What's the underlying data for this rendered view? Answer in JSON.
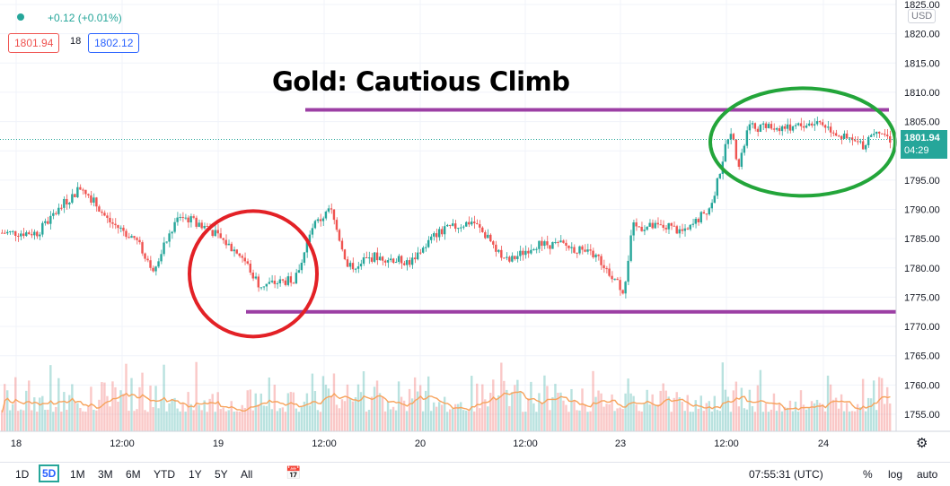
{
  "header": {
    "change_text": "+0.12 (+0.01%)",
    "bid": "1801.94",
    "spread": "18",
    "ask": "1802.12",
    "currency": "USD"
  },
  "annotation_title": "Gold: Cautious Climb",
  "price_tag": {
    "price": "1801.94",
    "countdown": "04:29"
  },
  "toolbar": {
    "timeframes": [
      "1D",
      "5D",
      "1M",
      "3M",
      "6M",
      "YTD",
      "1Y",
      "5Y",
      "All"
    ],
    "active_timeframe": "5D",
    "time": "07:55:31 (UTC)",
    "percent": "%",
    "log": "log",
    "auto": "auto"
  },
  "icons": [
    "settings-gear-icon",
    "date-range-icon"
  ],
  "colors": {
    "up": "#26a69a",
    "down": "#ef5350",
    "purple_line": "#9c3fa4",
    "circle_red": "#e32126",
    "circle_green": "#23a53a"
  },
  "chart_data": {
    "type": "candlestick",
    "ylim": [
      1750,
      1825
    ],
    "y_ticks": [
      1755,
      1760,
      1765,
      1770,
      1775,
      1780,
      1785,
      1790,
      1795,
      1800,
      1805,
      1810,
      1815,
      1820,
      1825
    ],
    "x_tick_labels": [
      "18",
      "12:00",
      "19",
      "12:00",
      "20",
      "12:00",
      "23",
      "12:00",
      "24"
    ],
    "last_price": 1801.94,
    "price_path": [
      {
        "t": 0,
        "p": 1786
      },
      {
        "t": 0.04,
        "p": 1786
      },
      {
        "t": 0.07,
        "p": 1791
      },
      {
        "t": 0.09,
        "p": 1794
      },
      {
        "t": 0.12,
        "p": 1788
      },
      {
        "t": 0.15,
        "p": 1785
      },
      {
        "t": 0.17,
        "p": 1780
      },
      {
        "t": 0.2,
        "p": 1789
      },
      {
        "t": 0.23,
        "p": 1787
      },
      {
        "t": 0.27,
        "p": 1782
      },
      {
        "t": 0.29,
        "p": 1777
      },
      {
        "t": 0.33,
        "p": 1778
      },
      {
        "t": 0.35,
        "p": 1787
      },
      {
        "t": 0.37,
        "p": 1790
      },
      {
        "t": 0.39,
        "p": 1780
      },
      {
        "t": 0.42,
        "p": 1782
      },
      {
        "t": 0.46,
        "p": 1781
      },
      {
        "t": 0.49,
        "p": 1786
      },
      {
        "t": 0.53,
        "p": 1788
      },
      {
        "t": 0.57,
        "p": 1781
      },
      {
        "t": 0.6,
        "p": 1784
      },
      {
        "t": 0.63,
        "p": 1784
      },
      {
        "t": 0.67,
        "p": 1782
      },
      {
        "t": 0.7,
        "p": 1776
      },
      {
        "t": 0.71,
        "p": 1787
      },
      {
        "t": 0.75,
        "p": 1787
      },
      {
        "t": 0.77,
        "p": 1786
      },
      {
        "t": 0.8,
        "p": 1791
      },
      {
        "t": 0.82,
        "p": 1804
      },
      {
        "t": 0.83,
        "p": 1797
      },
      {
        "t": 0.84,
        "p": 1804
      },
      {
        "t": 0.89,
        "p": 1804
      },
      {
        "t": 0.92,
        "p": 1805
      },
      {
        "t": 0.95,
        "p": 1802
      },
      {
        "t": 0.97,
        "p": 1801
      },
      {
        "t": 0.985,
        "p": 1804
      },
      {
        "t": 1.0,
        "p": 1801.94
      }
    ],
    "resistance_level": 1807,
    "support_level": 1772.5,
    "red_circle_price": 1779,
    "green_circle_price": 1801.5
  }
}
